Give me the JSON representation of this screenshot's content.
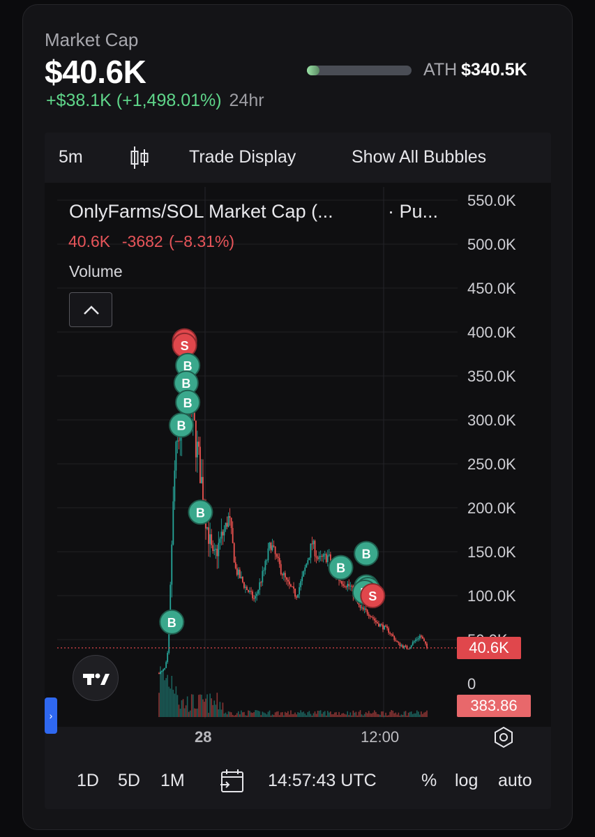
{
  "header": {
    "market_cap_label": "Market Cap",
    "market_cap_value": "$40.6K",
    "change": "+$38.1K (+1,498.01%)",
    "change_period": "24hr",
    "ath_label": "ATH",
    "ath_value": "$340.5K",
    "ath_progress": 0.12
  },
  "toolbar": {
    "interval": "5m",
    "chart_type_icon": "candlestick-icon",
    "trade_display": "Trade Display",
    "show_all_bubbles": "Show All Bubbles"
  },
  "legend": {
    "title": "OnlyFarms/SOL Market Cap (...",
    "title_suffix": "· Pu...",
    "last": "40.6K",
    "change": "-3682 (−8.31%)",
    "volume": "Volume"
  },
  "price_tags": {
    "current": "40.6K",
    "volume": "383.86"
  },
  "bottom_bar": {
    "ranges": [
      "1D",
      "5D",
      "1M"
    ],
    "time": "14:57:43 UTC",
    "percent": "%",
    "log": "log",
    "auto": "auto"
  },
  "colors": {
    "up": "#26a69a",
    "down": "#ef5350",
    "buy_bubble": "#3aa88c",
    "sell_bubble": "#e0474c",
    "accent_green": "#5fd68a",
    "tab_blue": "#2f68f0"
  },
  "chart_data": {
    "type": "candlestick",
    "y_ticks": [
      "550.0K",
      "500.0K",
      "450.0K",
      "400.0K",
      "350.0K",
      "300.0K",
      "250.0K",
      "200.0K",
      "150.0K",
      "100.0K",
      "50.0K",
      "0"
    ],
    "x_ticks": [
      "28",
      "12:00"
    ],
    "ylim": [
      0,
      550000
    ],
    "current_price": 40600,
    "grid": true,
    "series_profile": [
      [
        0,
        12000
      ],
      [
        0.01,
        14000
      ],
      [
        0.02,
        18000
      ],
      [
        0.03,
        40000
      ],
      [
        0.04,
        160000
      ],
      [
        0.05,
        250000
      ],
      [
        0.07,
        300000
      ],
      [
        0.09,
        340000
      ],
      [
        0.11,
        290000
      ],
      [
        0.13,
        240000
      ],
      [
        0.15,
        180000
      ],
      [
        0.17,
        140000
      ],
      [
        0.2,
        170000
      ],
      [
        0.22,
        190000
      ],
      [
        0.24,
        130000
      ],
      [
        0.27,
        110000
      ],
      [
        0.3,
        95000
      ],
      [
        0.33,
        130000
      ],
      [
        0.35,
        160000
      ],
      [
        0.37,
        140000
      ],
      [
        0.4,
        115000
      ],
      [
        0.43,
        100000
      ],
      [
        0.45,
        120000
      ],
      [
        0.48,
        160000
      ],
      [
        0.5,
        140000
      ],
      [
        0.53,
        145000
      ],
      [
        0.56,
        120000
      ],
      [
        0.6,
        110000
      ],
      [
        0.63,
        85000
      ],
      [
        0.66,
        80000
      ],
      [
        0.68,
        70000
      ],
      [
        0.72,
        60000
      ],
      [
        0.75,
        45000
      ],
      [
        0.78,
        40000
      ],
      [
        0.8,
        48000
      ],
      [
        0.82,
        55000
      ],
      [
        0.84,
        40600
      ]
    ],
    "bubbles": [
      {
        "type": "S",
        "value": 390000,
        "pos": 0.08
      },
      {
        "type": "S",
        "value": 385000,
        "pos": 0.08
      },
      {
        "type": "B",
        "value": 362000,
        "pos": 0.09
      },
      {
        "type": "B",
        "value": 342000,
        "pos": 0.085
      },
      {
        "type": "B",
        "value": 320000,
        "pos": 0.09
      },
      {
        "type": "B",
        "value": 294000,
        "pos": 0.07
      },
      {
        "type": "B",
        "value": 195000,
        "pos": 0.13
      },
      {
        "type": "B",
        "value": 132000,
        "pos": 0.57
      },
      {
        "type": "B",
        "value": 148000,
        "pos": 0.65
      },
      {
        "type": "B",
        "value": 110000,
        "pos": 0.65
      },
      {
        "type": "B",
        "value": 107000,
        "pos": 0.655
      },
      {
        "type": "B",
        "value": 104000,
        "pos": 0.645
      },
      {
        "type": "S",
        "value": 100000,
        "pos": 0.67
      },
      {
        "type": "B",
        "value": 70000,
        "pos": 0.04
      }
    ]
  }
}
